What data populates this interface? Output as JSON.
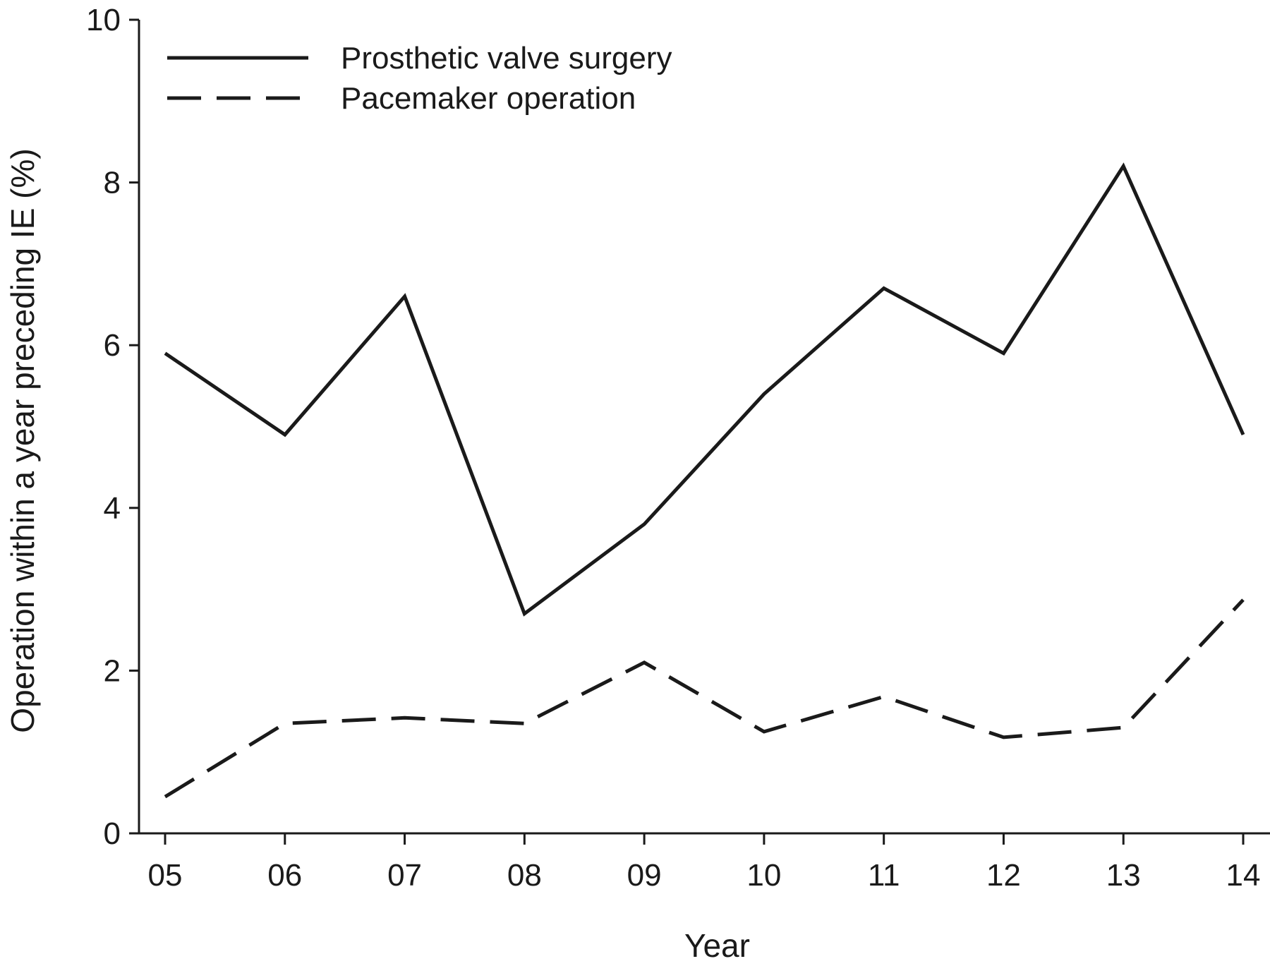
{
  "chart_data": {
    "type": "line",
    "xlabel": "Year",
    "ylabel": "Operation within a year preceding IE (%)",
    "categories": [
      "05",
      "06",
      "07",
      "08",
      "09",
      "10",
      "11",
      "12",
      "13",
      "14"
    ],
    "ylim": [
      0,
      10
    ],
    "yticks": [
      "0",
      "2",
      "4",
      "6",
      "8",
      "10"
    ],
    "grid": false,
    "legend_position": "top-left",
    "series": [
      {
        "name": "Prosthetic valve surgery",
        "line_style": "solid",
        "color": "#1a1a1a",
        "values": [
          5.9,
          4.9,
          6.6,
          2.7,
          3.8,
          5.4,
          6.7,
          5.9,
          8.2,
          4.9
        ]
      },
      {
        "name": "Pacemaker operation",
        "line_style": "dashed",
        "color": "#1a1a1a",
        "values": [
          0.45,
          1.35,
          1.42,
          1.35,
          2.1,
          1.25,
          1.68,
          1.18,
          1.3,
          2.87
        ]
      }
    ]
  }
}
